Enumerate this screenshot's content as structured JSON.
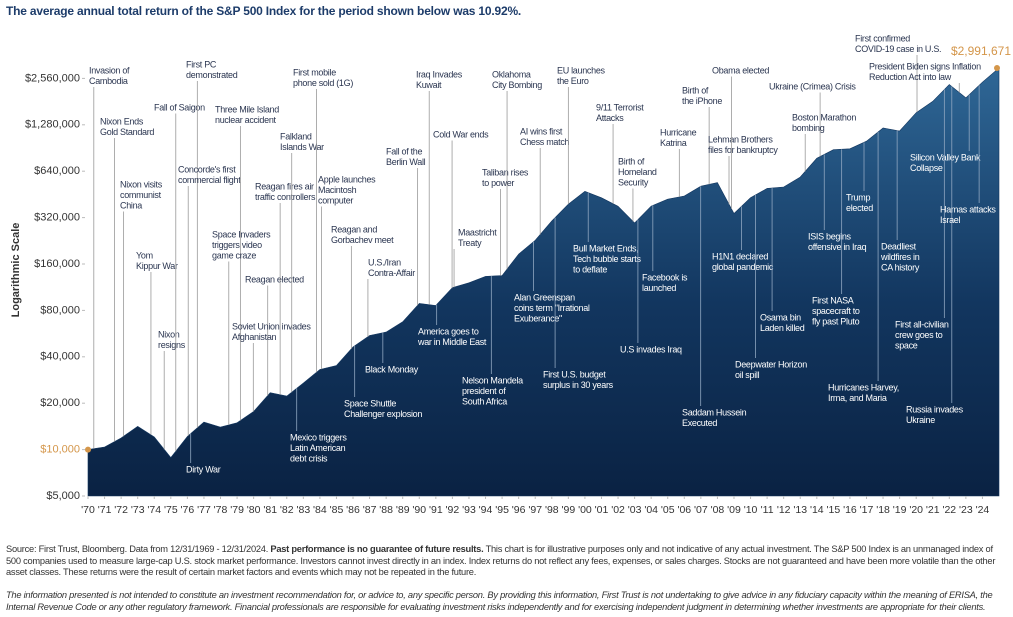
{
  "chart_data": {
    "type": "area",
    "title": "The average annual total return of the S&P 500 Index for the period shown below was 10.92%.",
    "y_label": "Logarithmic Scale",
    "log_scale": true,
    "grid": false,
    "color": "#12365f",
    "accent_color": "#d4964a",
    "x": [
      1970,
      1971,
      1972,
      1973,
      1974,
      1975,
      1976,
      1977,
      1978,
      1979,
      1980,
      1981,
      1982,
      1983,
      1984,
      1985,
      1986,
      1987,
      1988,
      1989,
      1990,
      1991,
      1992,
      1993,
      1994,
      1995,
      1996,
      1997,
      1998,
      1999,
      2000,
      2001,
      2002,
      2003,
      2004,
      2005,
      2006,
      2007,
      2008,
      2009,
      2010,
      2011,
      2012,
      2013,
      2014,
      2015,
      2016,
      2017,
      2018,
      2019,
      2020,
      2021,
      2022,
      2023,
      2024,
      2025
    ],
    "values": [
      10000,
      10401,
      11888,
      14143,
      12069,
      8874,
      12176,
      15078,
      13995,
      14914,
      17664,
      23389,
      22241,
      27001,
      33077,
      35149,
      46304,
      54951,
      57835,
      67436,
      88805,
      86045,
      112263,
      120816,
      132995,
      134752,
      185390,
      227950,
      303990,
      390870,
      473100,
      430040,
      378930,
      295190,
      379870,
      421210,
      441890,
      511680,
      539790,
      340080,
      430080,
      494870,
      505330,
      586210,
      776080,
      882330,
      894540,
      1001500,
      1220100,
      1166600,
      1533900,
      1816100,
      2337500,
      1914200,
      2417300,
      2991671
    ],
    "value_labels": [
      null,
      null,
      null,
      null,
      null,
      null,
      null,
      null,
      null,
      null,
      null,
      null,
      null,
      null,
      null,
      null,
      null,
      null,
      null,
      null,
      null,
      null,
      null,
      null,
      null,
      null,
      null,
      null,
      null,
      null,
      null,
      null,
      null,
      null,
      null,
      null,
      null,
      null,
      null,
      null,
      null,
      null,
      null,
      null,
      null,
      null,
      null,
      null,
      null,
      null,
      null,
      null,
      null,
      null,
      null,
      "$2,991,671"
    ],
    "xlim": [
      1970,
      2025
    ],
    "ylim": [
      5000,
      4500000
    ],
    "yticks": [
      {
        "value": 5000,
        "label": "$5,000"
      },
      {
        "value": 10000,
        "label": "$10,000"
      },
      {
        "value": 20000,
        "label": "$20,000"
      },
      {
        "value": 40000,
        "label": "$40,000"
      },
      {
        "value": 80000,
        "label": "$80,000"
      },
      {
        "value": 160000,
        "label": "$160,000"
      },
      {
        "value": 320000,
        "label": "$320,000"
      },
      {
        "value": 640000,
        "label": "$640,000"
      },
      {
        "value": 1280000,
        "label": "$1,280,000"
      },
      {
        "value": 2560000,
        "label": "$2,560,000"
      }
    ],
    "xticks": [
      {
        "value": 1970,
        "label": "'70"
      },
      {
        "value": 1971,
        "label": "'71"
      },
      {
        "value": 1972,
        "label": "'72"
      },
      {
        "value": 1973,
        "label": "'73"
      },
      {
        "value": 1974,
        "label": "'74"
      },
      {
        "value": 1975,
        "label": "'75"
      },
      {
        "value": 1976,
        "label": "'76"
      },
      {
        "value": 1977,
        "label": "'77"
      },
      {
        "value": 1978,
        "label": "'78"
      },
      {
        "value": 1979,
        "label": "'79"
      },
      {
        "value": 1980,
        "label": "'80"
      },
      {
        "value": 1981,
        "label": "'81"
      },
      {
        "value": 1982,
        "label": "'82"
      },
      {
        "value": 1983,
        "label": "'83"
      },
      {
        "value": 1984,
        "label": "'84"
      },
      {
        "value": 1985,
        "label": "'85"
      },
      {
        "value": 1986,
        "label": "'86"
      },
      {
        "value": 1987,
        "label": "'87"
      },
      {
        "value": 1988,
        "label": "'88"
      },
      {
        "value": 1989,
        "label": "'89"
      },
      {
        "value": 1990,
        "label": "'90"
      },
      {
        "value": 1991,
        "label": "'91"
      },
      {
        "value": 1992,
        "label": "'92"
      },
      {
        "value": 1993,
        "label": "'93"
      },
      {
        "value": 1994,
        "label": "'94"
      },
      {
        "value": 1995,
        "label": "'95"
      },
      {
        "value": 1996,
        "label": "'96"
      },
      {
        "value": 1997,
        "label": "'97"
      },
      {
        "value": 1998,
        "label": "'98"
      },
      {
        "value": 1999,
        "label": "'99"
      },
      {
        "value": 2000,
        "label": "'00"
      },
      {
        "value": 2001,
        "label": "'01"
      },
      {
        "value": 2002,
        "label": "'02"
      },
      {
        "value": 2003,
        "label": "'03"
      },
      {
        "value": 2004,
        "label": "'04"
      },
      {
        "value": 2005,
        "label": "'05"
      },
      {
        "value": 2006,
        "label": "'06"
      },
      {
        "value": 2007,
        "label": "'07"
      },
      {
        "value": 2008,
        "label": "'08"
      },
      {
        "value": 2009,
        "label": "'09"
      },
      {
        "value": 2010,
        "label": "'10"
      },
      {
        "value": 2011,
        "label": "'11"
      },
      {
        "value": 2012,
        "label": "'12"
      },
      {
        "value": 2013,
        "label": "'13"
      },
      {
        "value": 2014,
        "label": "'14"
      },
      {
        "value": 2015,
        "label": "'15"
      },
      {
        "value": 2016,
        "label": "'16"
      },
      {
        "value": 2017,
        "label": "'17"
      },
      {
        "value": 2018,
        "label": "'18"
      },
      {
        "value": 2019,
        "label": "'19"
      },
      {
        "value": 2020,
        "label": "'20"
      },
      {
        "value": 2021,
        "label": "'21"
      },
      {
        "value": 2022,
        "label": "'22"
      },
      {
        "value": 2023,
        "label": "'23"
      },
      {
        "value": 2024,
        "label": "'24"
      }
    ],
    "annotations": [
      {
        "lines": [
          "Invasion of",
          "Cambodia"
        ],
        "x": 1970.35
      },
      {
        "lines": [
          "Nixon Ends",
          "Gold Standard"
        ],
        "x": 1971.6
      },
      {
        "lines": [
          "Nixon visits",
          "communist",
          "China"
        ],
        "x": 1972.15
      },
      {
        "lines": [
          "Yom",
          "Kippur War"
        ],
        "x": 1973.8
      },
      {
        "lines": [
          "Nixon",
          "resigns"
        ],
        "x": 1974.6
      },
      {
        "lines": [
          "Fall of Saigon"
        ],
        "x": 1975.3
      },
      {
        "lines": [
          "First PC",
          "demonstrated"
        ],
        "x": 1976.6
      },
      {
        "lines": [
          "Dirty War"
        ],
        "x": 1976.2
      },
      {
        "lines": [
          "Concorde's first",
          "commercial flight"
        ],
        "x": 1976.05
      },
      {
        "lines": [
          "Three Mile Island",
          "nuclear accident"
        ],
        "x": 1979.2
      },
      {
        "lines": [
          "Space Invaders",
          "triggers video",
          "game craze"
        ],
        "x": 1978.5
      },
      {
        "lines": [
          "Reagan elected"
        ],
        "x": 1980.85
      },
      {
        "lines": [
          "Soviet Union invades",
          "Afghanistan"
        ],
        "x": 1979.98
      },
      {
        "lines": [
          "Reagan fires air",
          "traffic controllers"
        ],
        "x": 1981.6
      },
      {
        "lines": [
          "Falkland",
          "Islands War"
        ],
        "x": 1982.3
      },
      {
        "lines": [
          "Mexico triggers",
          "Latin American",
          "debt crisis"
        ],
        "x": 1982.6
      },
      {
        "lines": [
          "First mobile",
          "phone sold (1G)"
        ],
        "x": 1983.8
      },
      {
        "lines": [
          "Apple launches",
          "Macintosh",
          "computer"
        ],
        "x": 1984.1
      },
      {
        "lines": [
          "Reagan and",
          "Gorbachev meet"
        ],
        "x": 1985.9
      },
      {
        "lines": [
          "Space Shuttle",
          "Challenger explosion"
        ],
        "x": 1986.1
      },
      {
        "lines": [
          "U.S./Iran",
          "Contra-Affair"
        ],
        "x": 1986.9
      },
      {
        "lines": [
          "Black Monday"
        ],
        "x": 1987.8
      },
      {
        "lines": [
          "Fall of the",
          "Berlin Wall"
        ],
        "x": 1989.9
      },
      {
        "lines": [
          "Iraq Invades",
          "Kuwait"
        ],
        "x": 1990.6
      },
      {
        "lines": [
          "America goes to",
          "war in Middle East"
        ],
        "x": 1991.05
      },
      {
        "lines": [
          "Cold War ends"
        ],
        "x": 1991.98
      },
      {
        "lines": [
          "Maastricht",
          "Treaty"
        ],
        "x": 1992.1
      },
      {
        "lines": [
          "Nelson Mandela",
          "president of",
          "South Africa"
        ],
        "x": 1994.35
      },
      {
        "lines": [
          "Taliban rises",
          "to power"
        ],
        "x": 1994.9
      },
      {
        "lines": [
          "Oklahoma",
          "City Bombing"
        ],
        "x": 1995.3
      },
      {
        "lines": [
          "AI wins first",
          "Chess match"
        ],
        "x": 1997.3
      },
      {
        "lines": [
          "Alan Greenspan",
          "coins term \"Irrational",
          "Exuberance\""
        ],
        "x": 1996.9
      },
      {
        "lines": [
          "First U.S. budget",
          "surplus in 30 years"
        ],
        "x": 1998.2
      },
      {
        "lines": [
          "EU launches",
          "the Euro"
        ],
        "x": 1999.0
      },
      {
        "lines": [
          "Bull Market Ends,",
          "Tech bubble starts",
          "to deflate"
        ],
        "x": 2000.2
      },
      {
        "lines": [
          "9/11 Terrorist",
          "Attacks"
        ],
        "x": 2001.7
      },
      {
        "lines": [
          "Birth of",
          "Homeland",
          "Security"
        ],
        "x": 2002.9
      },
      {
        "lines": [
          "U.S invades Iraq"
        ],
        "x": 2003.2
      },
      {
        "lines": [
          "Facebook is",
          "launched"
        ],
        "x": 2004.1
      },
      {
        "lines": [
          "Hurricane",
          "Katrina"
        ],
        "x": 2005.7
      },
      {
        "lines": [
          "Saddam Hussein",
          "Executed"
        ],
        "x": 2006.99
      },
      {
        "lines": [
          "Birth of",
          "the iPhone"
        ],
        "x": 2007.5
      },
      {
        "lines": [
          "Lehman Brothers",
          "files for bankruptcy"
        ],
        "x": 2008.7
      },
      {
        "lines": [
          "Obama elected"
        ],
        "x": 2008.85
      },
      {
        "lines": [
          "H1N1 declared",
          "global pandemic"
        ],
        "x": 2009.45
      },
      {
        "lines": [
          "Deepwater Horizon",
          "oil spill"
        ],
        "x": 2010.3
      },
      {
        "lines": [
          "Osama bin",
          "Laden killed"
        ],
        "x": 2011.3
      },
      {
        "lines": [
          "Ukraine (Crimea) Crisis"
        ],
        "x": 2014.2
      },
      {
        "lines": [
          "Boston Marathon",
          "bombing"
        ],
        "x": 2013.3
      },
      {
        "lines": [
          "ISIS begins",
          "offensive in Iraq"
        ],
        "x": 2014.45
      },
      {
        "lines": [
          "First NASA",
          "spacecraft to",
          "fly past Pluto"
        ],
        "x": 2015.5
      },
      {
        "lines": [
          "Trump",
          "elected"
        ],
        "x": 2016.85
      },
      {
        "lines": [
          "Hurricanes Harvey,",
          "Irma, and Maria"
        ],
        "x": 2017.7
      },
      {
        "lines": [
          "Deadliest",
          "wildfires in",
          "CA history"
        ],
        "x": 2018.85
      },
      {
        "lines": [
          "First confirmed",
          "COVID-19 case in U.S."
        ],
        "x": 2020.05
      },
      {
        "lines": [
          "President Biden signs Inflation",
          "Reduction Act into law"
        ],
        "x": 2022.6
      },
      {
        "lines": [
          "Silicon Valley Bank",
          "Collapse"
        ],
        "x": 2023.2
      },
      {
        "lines": [
          "First all-civilian",
          "crew goes to",
          "space"
        ],
        "x": 2021.7
      },
      {
        "lines": [
          "Russia invades",
          "Ukraine"
        ],
        "x": 2022.15
      },
      {
        "lines": [
          "Hamas attacks",
          "Israel"
        ],
        "x": 2023.8
      }
    ],
    "footnote": {
      "source": "Source: First Trust, Bloomberg. Data from 12/31/1969 - 12/31/2024.",
      "bold": "Past performance is no guarantee of future results.",
      "rest": "This chart is for illustrative purposes only and not indicative of any actual investment. The S&P 500 Index is an unmanaged index of 500 companies used to measure large-cap U.S. stock market performance. Investors cannot invest directly in an index. Index returns do not reflect any fees, expenses, or sales charges. Stocks are not guaranteed and have been more volatile than the other asset classes. These returns were the result of certain market factors and events which may not be repeated in the future.",
      "disclaimer": "The information presented is not intended to constitute an investment recommendation for, or advice to, any specific person. By providing this information, First Trust is not undertaking to give advice in any fiduciary capacity within the meaning of ERISA, the Internal Revenue Code or any other regulatory framework. Financial professionals are responsible for evaluating investment risks independently and for exercising independent judgment in determining whether investments are appropriate for their clients."
    }
  }
}
